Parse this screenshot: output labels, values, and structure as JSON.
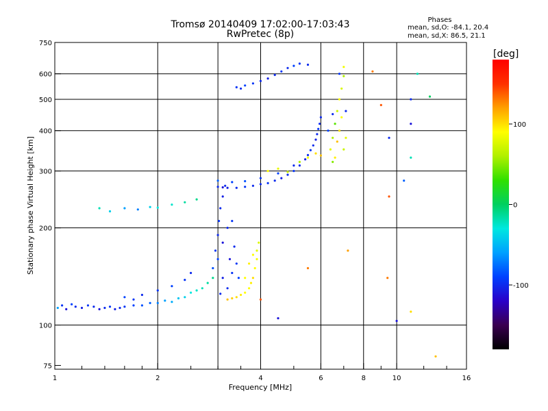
{
  "chart_data": {
    "type": "scatter",
    "title": "Tromsø 20140409 17:02:00-17:03:43",
    "subtitle": "RwPretec (8p)",
    "xlabel": "Frequency [MHz]",
    "ylabel": "Stationary phase Virtual Height [km]",
    "x_scale": "log",
    "y_scale": "log",
    "xlim": [
      1,
      16
    ],
    "ylim": [
      73,
      750
    ],
    "x_ticks": [
      "1",
      "2",
      "4",
      "6",
      "8",
      "10",
      "16"
    ],
    "x_tick_values": [
      1,
      2,
      4,
      6,
      8,
      10,
      16
    ],
    "x_minor_ticks": [
      1.2,
      1.4,
      1.6,
      1.8,
      2.5,
      3,
      3.5,
      5,
      7,
      9,
      12,
      14
    ],
    "y_ticks": [
      "75",
      "100",
      "200",
      "300",
      "400",
      "500",
      "600",
      "750"
    ],
    "y_tick_values": [
      75,
      100,
      200,
      300,
      400,
      500,
      600,
      750
    ],
    "x_gridlines": [
      2,
      3,
      4,
      6,
      8,
      10
    ],
    "y_gridlines": [
      100,
      200,
      300,
      400,
      500,
      600
    ],
    "grid": true,
    "legend": {
      "title": "Phases",
      "lines": [
        "mean, sd,O: -84.1, 20.4",
        "mean, sd,X:  86.5, 21.1"
      ],
      "placement": "top-right"
    },
    "colorbar": {
      "label": "[deg]",
      "range": [
        -180,
        180
      ],
      "ticks": [
        "100",
        "0",
        "-100"
      ],
      "tick_values": [
        100,
        0,
        -100
      ],
      "colormap": [
        "#000000",
        "#3a0050",
        "#2a00c8",
        "#0040ff",
        "#00a0ff",
        "#00e8e0",
        "#00d060",
        "#30e000",
        "#b0f000",
        "#ffff00",
        "#ffa000",
        "#ff3000",
        "#ff0000"
      ]
    },
    "series": [
      {
        "points": [
          [
            1.02,
            113,
            -60
          ],
          [
            1.05,
            115,
            -95
          ],
          [
            1.08,
            112,
            -110
          ],
          [
            1.12,
            116,
            -90
          ],
          [
            1.15,
            114,
            -100
          ],
          [
            1.2,
            113,
            -105
          ],
          [
            1.25,
            115,
            -95
          ],
          [
            1.3,
            114,
            -100
          ],
          [
            1.35,
            112,
            -110
          ],
          [
            1.4,
            113,
            -100
          ],
          [
            1.45,
            114,
            -95
          ],
          [
            1.5,
            112,
            -105
          ],
          [
            1.55,
            113,
            -100
          ],
          [
            1.6,
            114,
            -95
          ],
          [
            1.7,
            115,
            -90
          ],
          [
            1.8,
            115,
            -85
          ],
          [
            1.9,
            117,
            -80
          ],
          [
            2.0,
            117,
            -70
          ],
          [
            2.1,
            119,
            -60
          ],
          [
            2.2,
            118,
            -55
          ],
          [
            2.3,
            121,
            -45
          ],
          [
            2.4,
            122,
            -40
          ],
          [
            2.5,
            126,
            -30
          ],
          [
            2.6,
            128,
            -25
          ],
          [
            2.7,
            130,
            -20
          ],
          [
            2.8,
            135,
            -15
          ],
          [
            2.9,
            140,
            -10
          ],
          [
            1.6,
            122,
            -90
          ],
          [
            1.7,
            120,
            -95
          ],
          [
            1.8,
            124,
            -100
          ],
          [
            2.0,
            128,
            -95
          ],
          [
            2.2,
            132,
            -90
          ],
          [
            2.4,
            138,
            -95
          ],
          [
            2.5,
            145,
            -100
          ],
          [
            1.35,
            230,
            -20
          ],
          [
            1.45,
            225,
            -40
          ],
          [
            1.6,
            230,
            -60
          ],
          [
            1.75,
            228,
            -70
          ],
          [
            1.9,
            232,
            -40
          ],
          [
            2.0,
            231,
            -30
          ],
          [
            2.2,
            236,
            -25
          ],
          [
            2.4,
            240,
            -15
          ],
          [
            2.6,
            245,
            -10
          ]
        ]
      },
      {
        "points": [
          [
            2.9,
            150,
            -85
          ],
          [
            2.95,
            170,
            -95
          ],
          [
            3.0,
            190,
            -100
          ],
          [
            3.02,
            210,
            -95
          ],
          [
            3.05,
            230,
            -100
          ],
          [
            3.1,
            250,
            -105
          ],
          [
            3.15,
            270,
            -100
          ],
          [
            3.0,
            160,
            -90
          ],
          [
            3.1,
            180,
            -110
          ],
          [
            3.2,
            200,
            -100
          ],
          [
            3.3,
            210,
            -95
          ],
          [
            3.25,
            160,
            -110
          ],
          [
            3.35,
            175,
            -100
          ],
          [
            3.4,
            155,
            -95
          ],
          [
            3.45,
            140,
            -90
          ],
          [
            3.1,
            140,
            -105
          ],
          [
            3.2,
            130,
            -100
          ],
          [
            3.3,
            145,
            -95
          ],
          [
            3.05,
            125,
            -100
          ]
        ]
      },
      {
        "points": [
          [
            3.2,
            120,
            110
          ],
          [
            3.3,
            121,
            105
          ],
          [
            3.4,
            122,
            100
          ],
          [
            3.5,
            124,
            95
          ],
          [
            3.6,
            126,
            90
          ],
          [
            3.7,
            130,
            90
          ],
          [
            3.75,
            135,
            95
          ],
          [
            3.8,
            140,
            100
          ],
          [
            3.85,
            150,
            90
          ],
          [
            3.9,
            160,
            85
          ],
          [
            3.9,
            170,
            80
          ],
          [
            3.95,
            180,
            75
          ],
          [
            3.6,
            140,
            90
          ],
          [
            3.7,
            155,
            95
          ],
          [
            3.8,
            165,
            90
          ]
        ]
      },
      {
        "points": [
          [
            3.0,
            268,
            -100
          ],
          [
            3.1,
            267,
            -110
          ],
          [
            3.2,
            266,
            -105
          ],
          [
            3.4,
            266,
            -100
          ],
          [
            3.6,
            268,
            -95
          ],
          [
            3.8,
            270,
            -100
          ],
          [
            4.0,
            273,
            -100
          ],
          [
            4.2,
            275,
            -95
          ],
          [
            4.4,
            280,
            -100
          ],
          [
            4.6,
            285,
            -105
          ],
          [
            4.8,
            292,
            -100
          ],
          [
            5.0,
            300,
            -95
          ],
          [
            5.2,
            312,
            -100
          ],
          [
            5.4,
            326,
            -105
          ],
          [
            5.5,
            336,
            -100
          ],
          [
            5.6,
            348,
            -95
          ],
          [
            5.7,
            360,
            -100
          ],
          [
            5.8,
            375,
            -105
          ],
          [
            5.85,
            390,
            -100
          ],
          [
            5.9,
            405,
            -95
          ],
          [
            5.95,
            420,
            -100
          ],
          [
            6.0,
            440,
            -100
          ],
          [
            3.0,
            280,
            -80
          ],
          [
            3.3,
            277,
            -90
          ],
          [
            3.6,
            279,
            -85
          ],
          [
            4.0,
            285,
            -95
          ],
          [
            4.5,
            295,
            -90
          ],
          [
            5.0,
            312,
            -100
          ]
        ]
      },
      {
        "points": [
          [
            4.2,
            300,
            90
          ],
          [
            4.5,
            305,
            80
          ],
          [
            4.8,
            298,
            70
          ],
          [
            5.2,
            320,
            60
          ],
          [
            5.5,
            330,
            85
          ],
          [
            5.8,
            340,
            100
          ],
          [
            6.0,
            335,
            110
          ]
        ]
      },
      {
        "points": [
          [
            3.4,
            545,
            -95
          ],
          [
            3.5,
            540,
            -100
          ],
          [
            3.6,
            552,
            -90
          ],
          [
            3.8,
            560,
            -95
          ],
          [
            4.0,
            570,
            -100
          ],
          [
            4.2,
            580,
            -105
          ],
          [
            4.4,
            595,
            -100
          ],
          [
            4.6,
            610,
            -95
          ],
          [
            4.8,
            625,
            -100
          ],
          [
            5.0,
            635,
            -90
          ],
          [
            5.2,
            645,
            -95
          ],
          [
            5.5,
            640,
            -100
          ]
        ]
      },
      {
        "points": [
          [
            6.4,
            350,
            80
          ],
          [
            6.5,
            380,
            60
          ],
          [
            6.6,
            420,
            40
          ],
          [
            6.7,
            460,
            70
          ],
          [
            6.8,
            500,
            90
          ],
          [
            6.9,
            540,
            75
          ],
          [
            7.0,
            590,
            60
          ],
          [
            7.0,
            630,
            85
          ],
          [
            6.5,
            320,
            50
          ],
          [
            6.6,
            330,
            95
          ],
          [
            6.7,
            370,
            110
          ],
          [
            6.8,
            400,
            100
          ],
          [
            6.9,
            440,
            90
          ],
          [
            7.0,
            350,
            70
          ],
          [
            7.1,
            380,
            80
          ],
          [
            6.3,
            400,
            -90
          ],
          [
            6.5,
            450,
            -100
          ],
          [
            6.8,
            600,
            -95
          ],
          [
            7.1,
            460,
            -100
          ]
        ]
      },
      {
        "points": [
          [
            8.5,
            610,
            130
          ],
          [
            9.0,
            480,
            140
          ],
          [
            9.5,
            380,
            -100
          ],
          [
            9.5,
            250,
            140
          ],
          [
            10.5,
            280,
            -80
          ],
          [
            11.0,
            500,
            -100
          ],
          [
            11.0,
            420,
            -110
          ],
          [
            11.0,
            330,
            -20
          ],
          [
            11.5,
            600,
            -20
          ],
          [
            12.5,
            510,
            0
          ],
          [
            9.4,
            140,
            130
          ],
          [
            10.0,
            103,
            -110
          ],
          [
            11.0,
            110,
            100
          ],
          [
            13.0,
            80,
            110
          ],
          [
            7.2,
            170,
            120
          ],
          [
            5.5,
            150,
            130
          ],
          [
            4.0,
            120,
            140
          ],
          [
            4.5,
            105,
            -110
          ]
        ]
      }
    ]
  }
}
